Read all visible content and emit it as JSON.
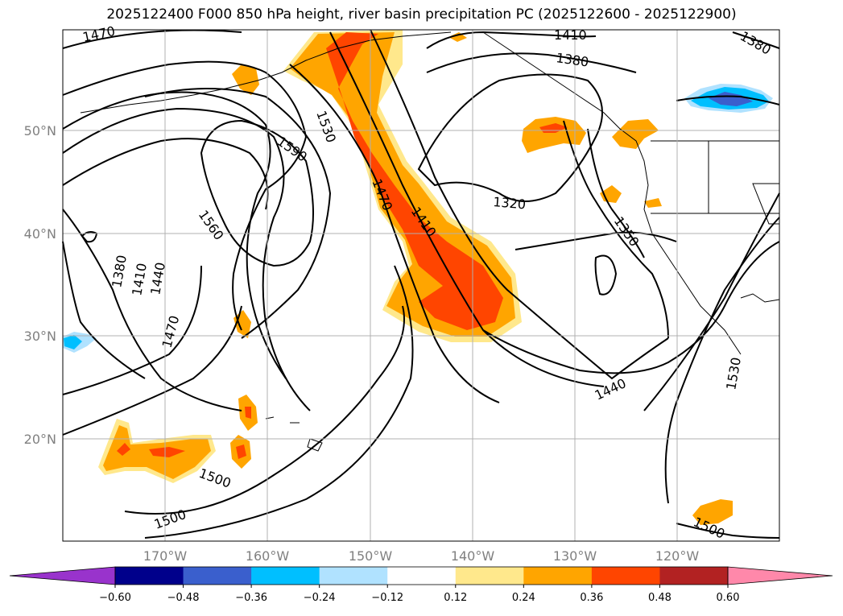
{
  "title": "2025122400 F000 850 hPa height, river basin precipitation PC (2025122600 - 2025122900)",
  "latitude_labels": [
    "50°N",
    "40°N",
    "30°N",
    "20°N"
  ],
  "longitude_labels": [
    "170°W",
    "160°W",
    "150°W",
    "140°W",
    "130°W",
    "120°W"
  ],
  "contour_labels": {
    "c1470_nw": "1470",
    "c1410_top": "1410",
    "c1380_top": "1380",
    "c1380_ne": "1380",
    "c1530_mid": "1530",
    "c1590": "1590",
    "c1470_mid": "1470",
    "c1410_mid": "1410",
    "c1320": "1320",
    "c1560": "1560",
    "c1350": "1350",
    "c1380_w": "1380",
    "c1410_w": "1410",
    "c1440_w": "1440",
    "c1470_sw": "1470",
    "c1440_se": "1440",
    "c1530_e": "1530",
    "c1500_s": "1500",
    "c1500_sw": "1500",
    "c1500_se": "1500"
  },
  "colorbar": {
    "ticks": [
      "−0.60",
      "−0.48",
      "−0.36",
      "−0.24",
      "−0.12",
      "0.12",
      "0.24",
      "0.36",
      "0.48",
      "0.60"
    ],
    "colors": [
      "#9933cc",
      "#00008b",
      "#3a5fcd",
      "#00bfff",
      "#b0e2ff",
      "#ffffff",
      "#ffe88c",
      "#ffa500",
      "#ff4500",
      "#b22222",
      "#ff88aa"
    ]
  }
}
